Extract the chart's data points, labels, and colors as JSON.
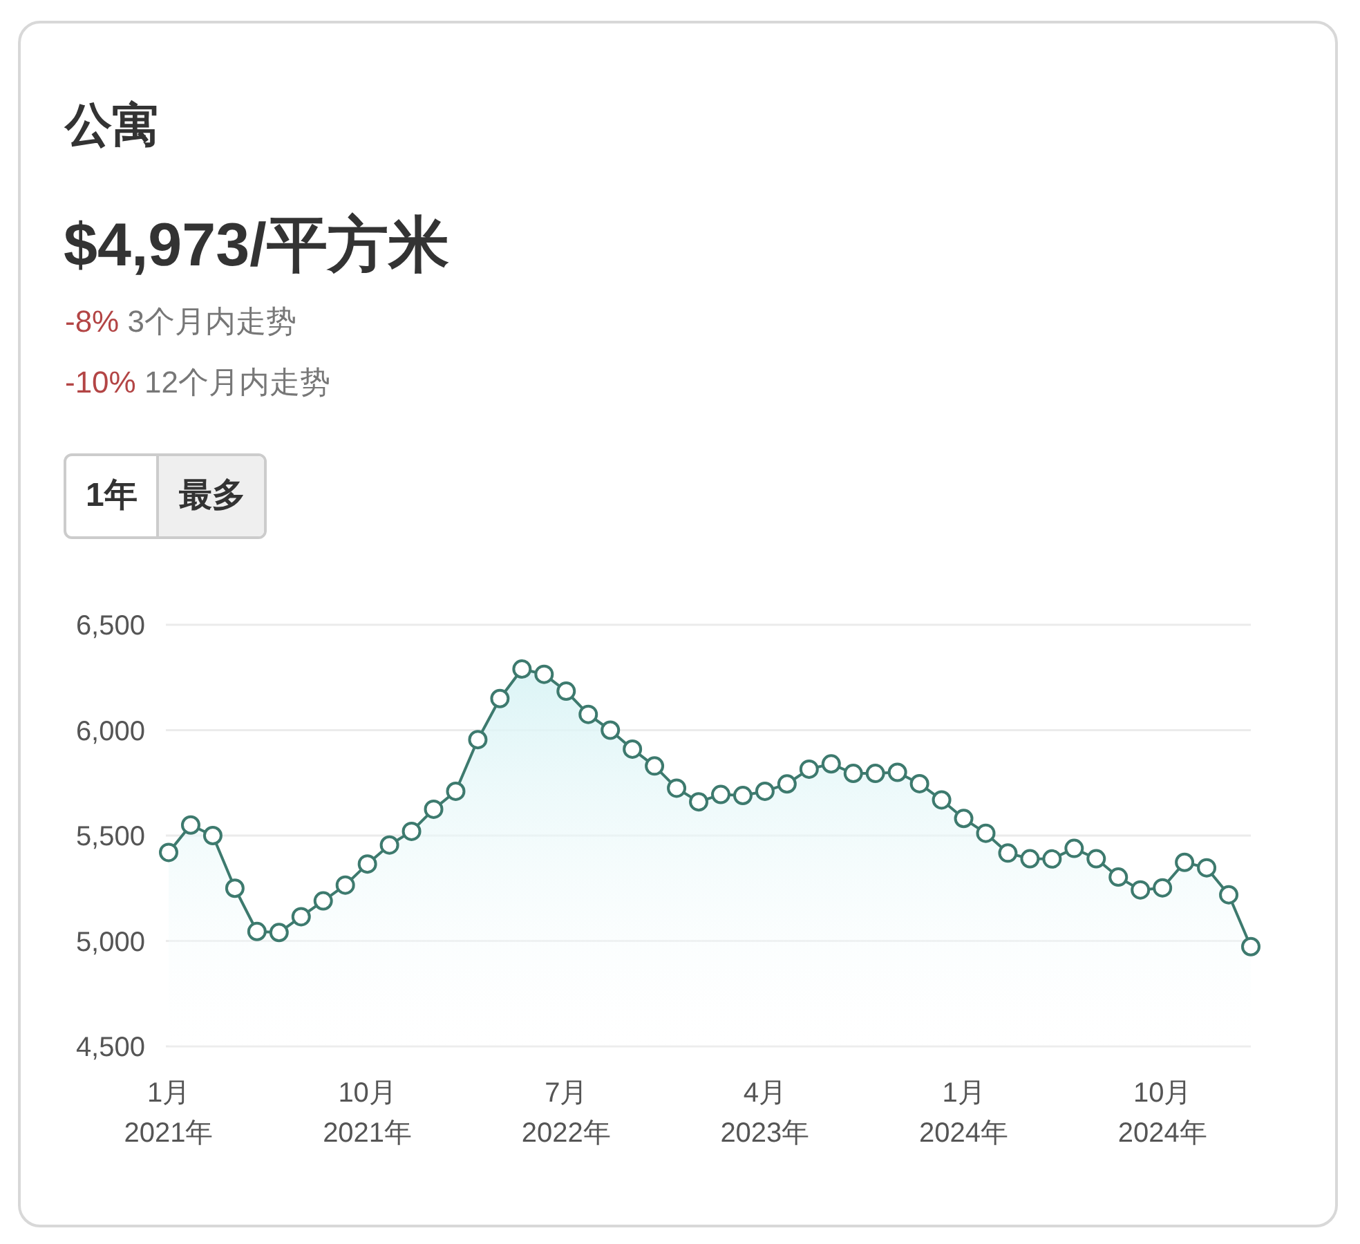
{
  "chart_data": {
    "type": "area",
    "title": "公寓",
    "subtitle": "$4,973/平方米",
    "annotations": [
      "-8% 3个月内走势",
      "-10% 12个月内走势",
      "1年",
      "最多"
    ],
    "x": [
      "2021-01",
      "2021-02",
      "2021-03",
      "2021-04",
      "2021-05",
      "2021-06",
      "2021-07",
      "2021-08",
      "2021-09",
      "2021-10",
      "2021-11",
      "2021-12",
      "2022-01",
      "2022-02",
      "2022-03",
      "2022-04",
      "2022-05",
      "2022-06",
      "2022-07",
      "2022-08",
      "2022-09",
      "2022-10",
      "2022-11",
      "2022-12",
      "2023-01",
      "2023-02",
      "2023-03",
      "2023-04",
      "2023-05",
      "2023-06",
      "2023-07",
      "2023-08",
      "2023-09",
      "2023-10",
      "2023-11",
      "2023-12",
      "2024-01",
      "2024-02",
      "2024-03",
      "2024-04",
      "2024-05",
      "2024-06",
      "2024-07",
      "2024-08",
      "2024-09",
      "2024-10",
      "2024-11",
      "2024-12",
      "2025-01",
      "2025-02"
    ],
    "series": [
      {
        "color": "#3d7a6e",
        "values": [
          5420,
          5550,
          5500,
          5250,
          5045,
          5040,
          5115,
          5190,
          5265,
          5365,
          5455,
          5520,
          5625,
          5710,
          5955,
          6150,
          6290,
          6265,
          6185,
          6075,
          6000,
          5910,
          5830,
          5725,
          5660,
          5695,
          5690,
          5710,
          5745,
          5815,
          5840,
          5795,
          5795,
          5800,
          5746,
          5669,
          5581,
          5511,
          5417,
          5390,
          5389,
          5439,
          5390,
          5303,
          5242,
          5252,
          5373,
          5347,
          5219,
          4973
        ]
      }
    ],
    "xlim": [
      "2021-01",
      "2025-02"
    ],
    "xticks": [
      {
        "value": "2021-01",
        "label": "1月\n2021年"
      },
      {
        "value": "2021-10",
        "label": "10月\n2021年"
      },
      {
        "value": "2022-07",
        "label": "7月\n2022年"
      },
      {
        "value": "2023-04",
        "label": "4月\n2023年"
      },
      {
        "value": "2024-01",
        "label": "1月\n2024年"
      },
      {
        "value": "2024-10",
        "label": "10月\n2024年"
      }
    ],
    "ylim": [
      4500,
      6500
    ],
    "yticks": [
      {
        "value": 4500,
        "label": "4,500"
      },
      {
        "value": 5000,
        "label": "5,000"
      },
      {
        "value": 5500,
        "label": "5,500"
      },
      {
        "value": 6000,
        "label": "6,000"
      },
      {
        "value": 6500,
        "label": "6,500"
      }
    ],
    "grid": "y",
    "marker": "circle"
  }
}
